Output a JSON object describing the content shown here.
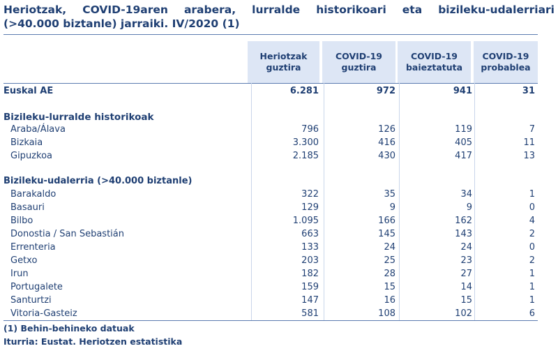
{
  "title": {
    "line1": "Heriotzak, COVID-19aren arabera, lurralde historikoari eta bizileku-udalerriari",
    "line2": "(>40.000 biztanle) jarraiki. IV/2020 (1)"
  },
  "columns": [
    {
      "l1": "Heriotzak",
      "l2": "guztira"
    },
    {
      "l1": "COVID-19",
      "l2": "guztira"
    },
    {
      "l1": "COVID-19",
      "l2": "baieztatuta"
    },
    {
      "l1": "COVID-19",
      "l2": "probablea"
    }
  ],
  "total": {
    "label": "Euskal AE",
    "values": [
      "6.281",
      "972",
      "941",
      "31"
    ]
  },
  "section_territories": "Bizileku-lurralde historikoak",
  "territories": [
    {
      "label": "Araba/Álava",
      "values": [
        "796",
        "126",
        "119",
        "7"
      ]
    },
    {
      "label": "Bizkaia",
      "values": [
        "3.300",
        "416",
        "405",
        "11"
      ]
    },
    {
      "label": "Gipuzkoa",
      "values": [
        "2.185",
        "430",
        "417",
        "13"
      ]
    }
  ],
  "section_municipalities": "Bizileku-udalerria (>40.000 biztanle)",
  "municipalities": [
    {
      "label": "Barakaldo",
      "values": [
        "322",
        "35",
        "34",
        "1"
      ]
    },
    {
      "label": "Basauri",
      "values": [
        "129",
        "9",
        "9",
        "0"
      ]
    },
    {
      "label": "Bilbo",
      "values": [
        "1.095",
        "166",
        "162",
        "4"
      ]
    },
    {
      "label": "Donostia / San Sebastián",
      "values": [
        "663",
        "145",
        "143",
        "2"
      ]
    },
    {
      "label": "Errenteria",
      "values": [
        "133",
        "24",
        "24",
        "0"
      ]
    },
    {
      "label": "Getxo",
      "values": [
        "203",
        "25",
        "23",
        "2"
      ]
    },
    {
      "label": "Irun",
      "values": [
        "182",
        "28",
        "27",
        "1"
      ]
    },
    {
      "label": "Portugalete",
      "values": [
        "159",
        "15",
        "14",
        "1"
      ]
    },
    {
      "label": "Santurtzi",
      "values": [
        "147",
        "16",
        "15",
        "1"
      ]
    },
    {
      "label": "Vitoria-Gasteiz",
      "values": [
        "581",
        "108",
        "102",
        "6"
      ]
    }
  ],
  "footnote": "(1) Behin-behineko datuak",
  "source": "Iturria: Eustat. Heriotzen estatistika",
  "colors": {
    "text": "#1f3f73",
    "header_bg": "#dde6f5",
    "rule": "#5a7bb0"
  }
}
